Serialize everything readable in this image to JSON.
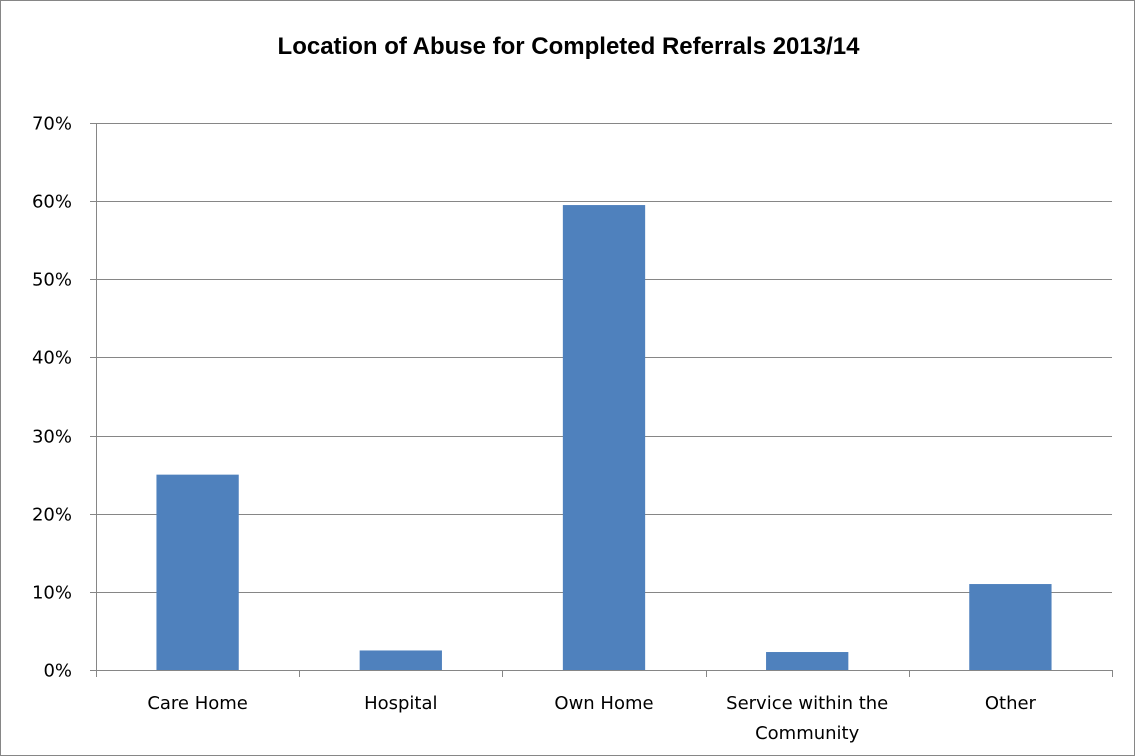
{
  "chart_data": {
    "type": "bar",
    "title": "Location of Abuse for Completed Referrals 2013/14",
    "categories": [
      "Care Home",
      "Hospital",
      "Own Home",
      "Service within the Community",
      "Other"
    ],
    "category_label_lines": [
      [
        "Care Home"
      ],
      [
        "Hospital"
      ],
      [
        "Own Home"
      ],
      [
        "Service within the",
        "Community"
      ],
      [
        "Other"
      ]
    ],
    "values": [
      0.25,
      0.025,
      0.595,
      0.023,
      0.11
    ],
    "ylim": [
      0,
      0.7
    ],
    "y_ticks": [
      0,
      0.1,
      0.2,
      0.3,
      0.4,
      0.5,
      0.6,
      0.7
    ],
    "y_tick_labels": [
      "0%",
      "10%",
      "20%",
      "30%",
      "40%",
      "50%",
      "60%",
      "70%"
    ],
    "xlabel": "",
    "ylabel": "",
    "grid": true,
    "legend": "none",
    "bar_color": "#4f81bd",
    "grid_color": "#868686"
  }
}
